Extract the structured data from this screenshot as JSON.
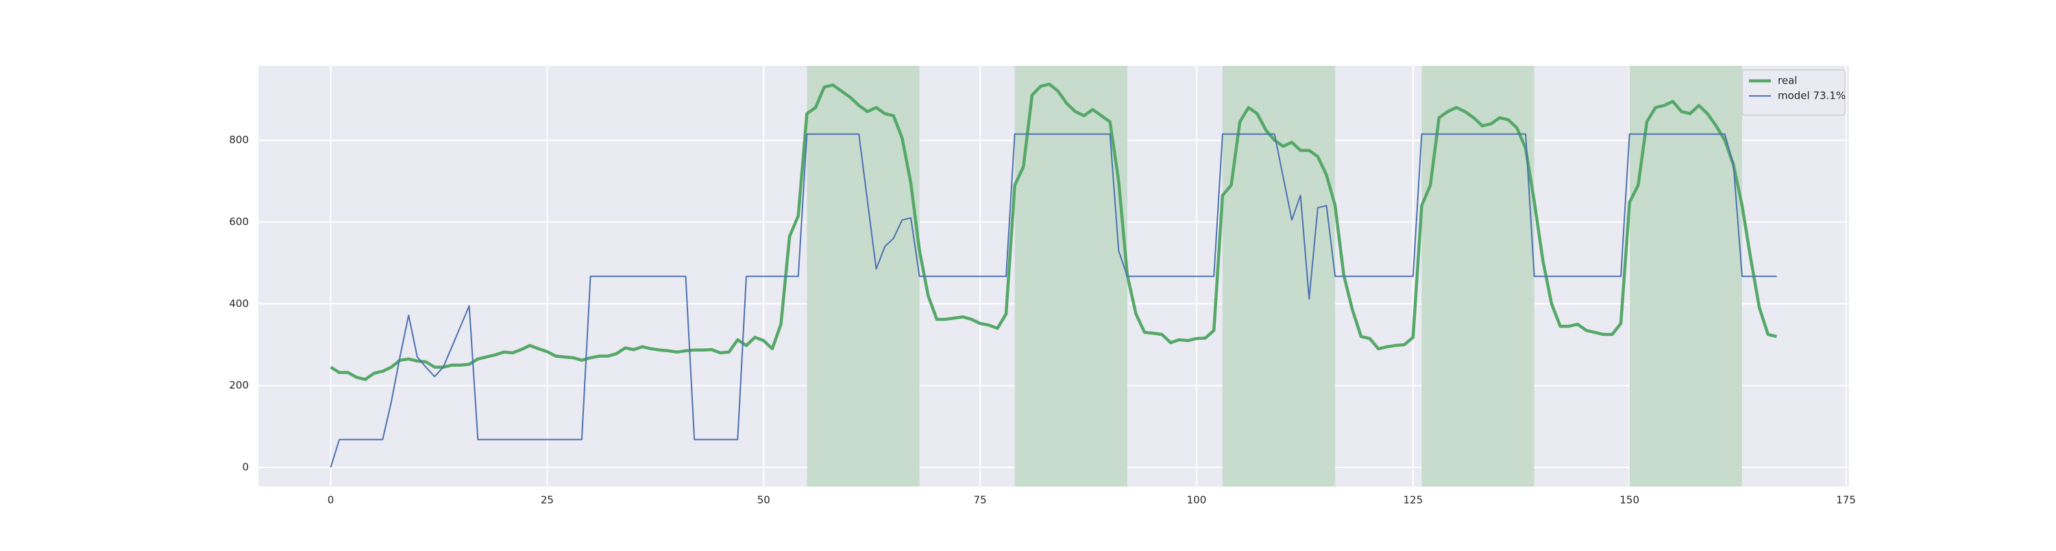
{
  "chart_data": {
    "type": "line",
    "x": [
      0,
      1,
      2,
      3,
      4,
      5,
      6,
      7,
      8,
      9,
      10,
      11,
      12,
      13,
      14,
      15,
      16,
      17,
      18,
      19,
      20,
      21,
      22,
      23,
      24,
      25,
      26,
      27,
      28,
      29,
      30,
      31,
      32,
      33,
      34,
      35,
      36,
      37,
      38,
      39,
      40,
      41,
      42,
      43,
      44,
      45,
      46,
      47,
      48,
      49,
      50,
      51,
      52,
      53,
      54,
      55,
      56,
      57,
      58,
      59,
      60,
      61,
      62,
      63,
      64,
      65,
      66,
      67,
      68,
      69,
      70,
      71,
      72,
      73,
      74,
      75,
      76,
      77,
      78,
      79,
      80,
      81,
      82,
      83,
      84,
      85,
      86,
      87,
      88,
      89,
      90,
      91,
      92,
      93,
      94,
      95,
      96,
      97,
      98,
      99,
      100,
      101,
      102,
      103,
      104,
      105,
      106,
      107,
      108,
      109,
      110,
      111,
      112,
      113,
      114,
      115,
      116,
      117,
      118,
      119,
      120,
      121,
      122,
      123,
      124,
      125,
      126,
      127,
      128,
      129,
      130,
      131,
      132,
      133,
      134,
      135,
      136,
      137,
      138,
      139,
      140,
      141,
      142,
      143,
      144,
      145,
      146,
      147,
      148,
      149,
      150,
      151,
      152,
      153,
      154,
      155,
      156,
      157,
      158,
      159,
      160,
      161,
      162,
      163,
      164,
      165,
      166,
      167
    ],
    "series": [
      {
        "name": "real",
        "color": "#55a868",
        "width": 4.5,
        "values": [
          245,
          232,
          232,
          220,
          215,
          230,
          235,
          245,
          262,
          265,
          260,
          258,
          245,
          245,
          250,
          250,
          252,
          265,
          270,
          275,
          282,
          280,
          288,
          298,
          290,
          283,
          272,
          270,
          268,
          262,
          268,
          272,
          272,
          278,
          292,
          288,
          295,
          290,
          287,
          285,
          282,
          285,
          287,
          287,
          288,
          280,
          282,
          312,
          298,
          318,
          310,
          290,
          350,
          565,
          615,
          865,
          880,
          930,
          935,
          920,
          905,
          885,
          870,
          880,
          865,
          860,
          805,
          695,
          530,
          420,
          362,
          362,
          365,
          368,
          362,
          352,
          348,
          340,
          375,
          690,
          735,
          910,
          932,
          937,
          920,
          890,
          870,
          860,
          875,
          860,
          845,
          700,
          470,
          375,
          330,
          328,
          325,
          305,
          312,
          310,
          315,
          316,
          335,
          665,
          690,
          845,
          880,
          865,
          825,
          800,
          785,
          795,
          775,
          775,
          760,
          715,
          640,
          470,
          385,
          320,
          315,
          290,
          295,
          298,
          300,
          318,
          640,
          690,
          855,
          870,
          880,
          870,
          855,
          835,
          840,
          855,
          850,
          830,
          780,
          650,
          505,
          400,
          345,
          345,
          350,
          335,
          330,
          325,
          325,
          352,
          648,
          690,
          845,
          880,
          885,
          895,
          870,
          865,
          885,
          865,
          835,
          800,
          740,
          640,
          510,
          390,
          325,
          320
        ]
      },
      {
        "name": "model 73.1%",
        "color": "#4c72b0",
        "width": 2,
        "values": [
          0,
          68,
          68,
          68,
          68,
          68,
          68,
          160,
          270,
          372,
          270,
          245,
          222,
          245,
          295,
          345,
          395,
          68,
          68,
          68,
          68,
          68,
          68,
          68,
          68,
          68,
          68,
          68,
          68,
          68,
          467,
          467,
          467,
          467,
          467,
          467,
          467,
          467,
          467,
          467,
          467,
          467,
          68,
          68,
          68,
          68,
          68,
          68,
          467,
          467,
          467,
          467,
          467,
          467,
          467,
          815,
          815,
          815,
          815,
          815,
          815,
          815,
          650,
          485,
          540,
          560,
          605,
          610,
          467,
          467,
          467,
          467,
          467,
          467,
          467,
          467,
          467,
          467,
          467,
          815,
          815,
          815,
          815,
          815,
          815,
          815,
          815,
          815,
          815,
          815,
          815,
          530,
          467,
          467,
          467,
          467,
          467,
          467,
          467,
          467,
          467,
          467,
          467,
          815,
          815,
          815,
          815,
          815,
          815,
          815,
          710,
          605,
          665,
          412,
          635,
          640,
          467,
          467,
          467,
          467,
          467,
          467,
          467,
          467,
          467,
          467,
          815,
          815,
          815,
          815,
          815,
          815,
          815,
          815,
          815,
          815,
          815,
          815,
          815,
          467,
          467,
          467,
          467,
          467,
          467,
          467,
          467,
          467,
          467,
          467,
          815,
          815,
          815,
          815,
          815,
          815,
          815,
          815,
          815,
          815,
          815,
          815,
          740,
          467,
          467,
          467,
          467,
          467
        ]
      }
    ],
    "spans": [
      [
        55,
        68
      ],
      [
        79,
        92
      ],
      [
        103,
        116
      ],
      [
        126,
        139
      ],
      [
        150,
        163
      ]
    ],
    "span_color": "#c8dccd",
    "xlim": [
      -8.35,
      175.35
    ],
    "ylim": [
      -47,
      982
    ],
    "xticks": [
      0,
      25,
      50,
      75,
      100,
      125,
      150,
      175
    ],
    "yticks": [
      0,
      200,
      400,
      600,
      800
    ],
    "grid": true,
    "legend": "upper right"
  }
}
